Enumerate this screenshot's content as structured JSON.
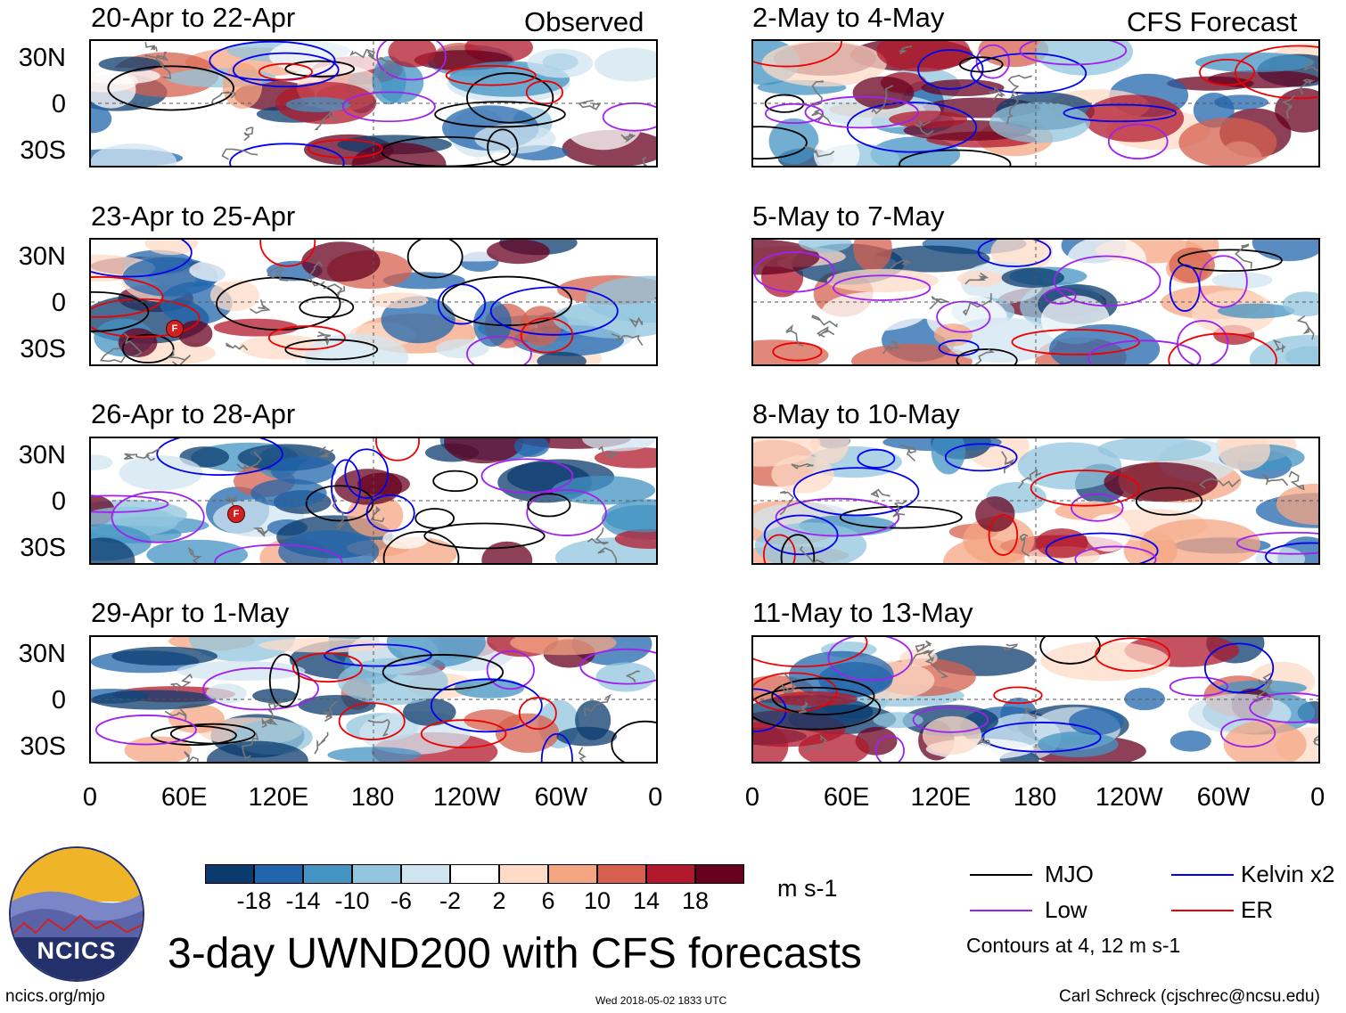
{
  "headers": {
    "observed": "Observed",
    "forecast": "CFS Forecast"
  },
  "panels": [
    {
      "title": "20-Apr to 22-Apr"
    },
    {
      "title": "23-Apr to 25-Apr"
    },
    {
      "title": "26-Apr to 28-Apr"
    },
    {
      "title": "29-Apr to 1-May"
    },
    {
      "title": "2-May to 4-May"
    },
    {
      "title": "5-May to 7-May"
    },
    {
      "title": "8-May to 10-May"
    },
    {
      "title": "11-May to 13-May"
    }
  ],
  "lat_labels": [
    "30N",
    "0",
    "30S"
  ],
  "lon_labels": [
    "0",
    "60E",
    "120E",
    "180",
    "120W",
    "60W",
    "0"
  ],
  "storm_marker": "F",
  "colorbar": {
    "ticks": [
      "-18",
      "-14",
      "-10",
      "-6",
      "-2",
      "2",
      "6",
      "10",
      "14",
      "18"
    ],
    "colors": [
      "#0b3b6e",
      "#2166ac",
      "#4393c3",
      "#92c5de",
      "#d1e5f0",
      "#ffffff",
      "#fddbc7",
      "#f4a582",
      "#d6604d",
      "#b2182b",
      "#67001f"
    ],
    "units": "m s-1"
  },
  "legend": {
    "items": [
      {
        "label": "MJO",
        "color": "#000000"
      },
      {
        "label": "Kelvin x2",
        "color": "#0000ee"
      },
      {
        "label": "Low",
        "color": "#a020f0"
      },
      {
        "label": "ER",
        "color": "#ee0000"
      }
    ],
    "note": "Contours at 4, 12 m s-1"
  },
  "logo_text": "NCICS",
  "main_title": "3-day UWND200 with CFS forecasts",
  "footer": {
    "url": "ncics.org/mjo",
    "timestamp": "Wed 2018-05-02 1833 UTC",
    "credit": "Carl Schreck (cjschrec@ncsu.edu)"
  }
}
